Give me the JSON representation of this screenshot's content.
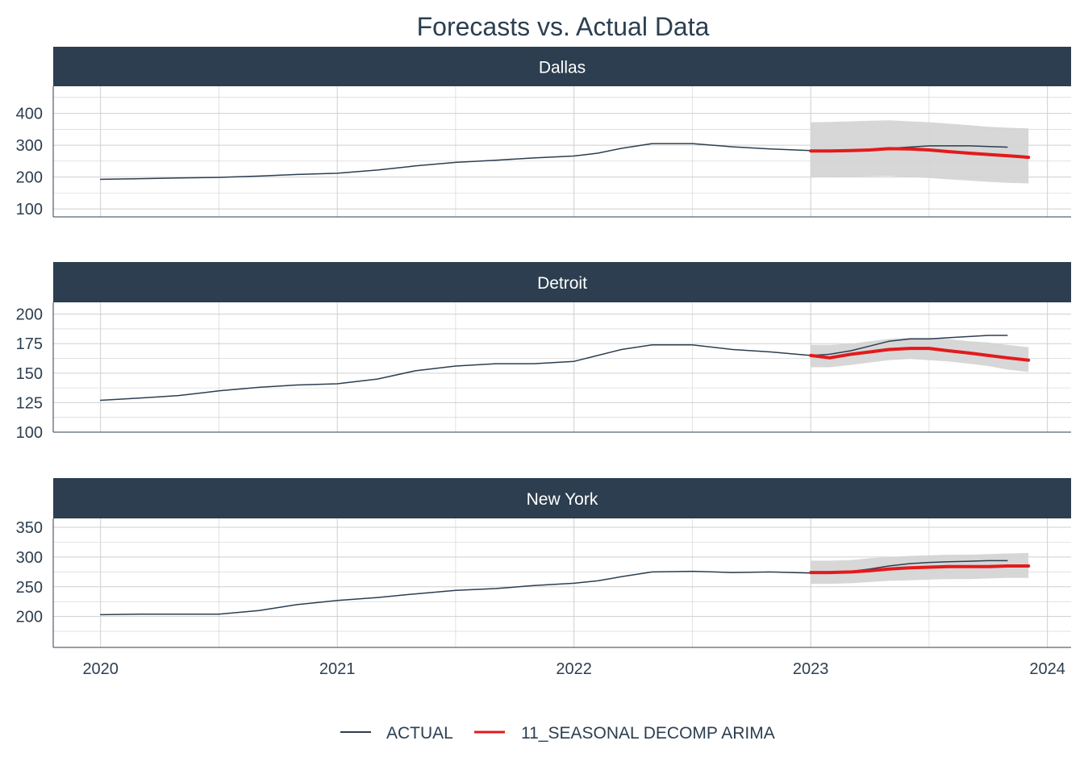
{
  "chart_data": {
    "type": "line",
    "title": "Forecasts vs. Actual Data",
    "colors": {
      "actual": "#2c3e50",
      "forecast": "#e31a1c",
      "interval": "#d3d3d3",
      "strip": "#2c3e50",
      "grid": "#cfcfcf"
    },
    "x_axis": {
      "ticks": [
        2020,
        2021,
        2022,
        2023,
        2024
      ],
      "range": [
        2019.8,
        2024.1
      ]
    },
    "legend": {
      "position": "bottom",
      "entries": [
        {
          "label": "ACTUAL",
          "color": "#2c3e50"
        },
        {
          "label": "11_SEASONAL DECOMP ARIMA",
          "color": "#e31a1c"
        }
      ]
    },
    "panels": [
      {
        "name": "Dallas",
        "ylim": [
          75,
          485
        ],
        "yticks": [
          100,
          200,
          300,
          400
        ],
        "actual": {
          "x": [
            2020.0,
            2020.17,
            2020.33,
            2020.5,
            2020.67,
            2020.83,
            2021.0,
            2021.17,
            2021.33,
            2021.5,
            2021.67,
            2021.83,
            2022.0,
            2022.1,
            2022.2,
            2022.33,
            2022.5,
            2022.67,
            2022.83,
            2023.0
          ],
          "y": [
            193,
            195,
            197,
            199,
            203,
            208,
            212,
            222,
            235,
            246,
            253,
            260,
            266,
            275,
            290,
            305,
            305,
            295,
            288,
            283
          ]
        },
        "actual_test": {
          "x": [
            2023.0,
            2023.17,
            2023.33,
            2023.5,
            2023.67,
            2023.83
          ],
          "y": [
            283,
            285,
            290,
            298,
            298,
            294
          ]
        },
        "forecast": {
          "x": [
            2023.0,
            2023.08,
            2023.17,
            2023.25,
            2023.33,
            2023.42,
            2023.5,
            2023.58,
            2023.67,
            2023.75,
            2023.83,
            2023.92
          ],
          "y": [
            282,
            282,
            283,
            285,
            289,
            288,
            285,
            280,
            275,
            271,
            267,
            262
          ],
          "lower": [
            198,
            200,
            201,
            202,
            203,
            200,
            197,
            193,
            189,
            185,
            182,
            180
          ],
          "upper": [
            372,
            373,
            375,
            377,
            378,
            375,
            372,
            368,
            363,
            358,
            355,
            353
          ]
        }
      },
      {
        "name": "Detroit",
        "ylim": [
          100,
          210
        ],
        "yticks": [
          100,
          125,
          150,
          175,
          200
        ],
        "actual": {
          "x": [
            2020.0,
            2020.17,
            2020.33,
            2020.5,
            2020.67,
            2020.83,
            2021.0,
            2021.17,
            2021.33,
            2021.5,
            2021.67,
            2021.83,
            2022.0,
            2022.1,
            2022.2,
            2022.33,
            2022.5,
            2022.67,
            2022.83,
            2023.0
          ],
          "y": [
            127,
            129,
            131,
            135,
            138,
            140,
            141,
            145,
            152,
            156,
            158,
            158,
            160,
            165,
            170,
            174,
            174,
            170,
            168,
            165
          ]
        },
        "actual_test": {
          "x": [
            2023.0,
            2023.08,
            2023.17,
            2023.25,
            2023.33,
            2023.42,
            2023.5,
            2023.58,
            2023.67,
            2023.75,
            2023.83
          ],
          "y": [
            165,
            166,
            169,
            173,
            177,
            179,
            179,
            180,
            181,
            182,
            182
          ]
        },
        "forecast": {
          "x": [
            2023.0,
            2023.08,
            2023.17,
            2023.25,
            2023.33,
            2023.42,
            2023.5,
            2023.58,
            2023.67,
            2023.75,
            2023.83,
            2023.92
          ],
          "y": [
            165,
            163,
            166,
            168,
            170,
            171,
            171,
            169,
            167,
            165,
            163,
            161
          ],
          "lower": [
            155,
            155,
            157,
            159,
            161,
            162,
            161,
            160,
            158,
            156,
            153,
            151
          ],
          "upper": [
            174,
            174,
            175,
            177,
            179,
            180,
            180,
            179,
            177,
            176,
            174,
            172
          ]
        }
      },
      {
        "name": "New York",
        "ylim": [
          148,
          365
        ],
        "yticks": [
          200,
          250,
          300,
          350
        ],
        "actual": {
          "x": [
            2020.0,
            2020.17,
            2020.33,
            2020.5,
            2020.67,
            2020.83,
            2021.0,
            2021.17,
            2021.33,
            2021.5,
            2021.67,
            2021.83,
            2022.0,
            2022.1,
            2022.2,
            2022.33,
            2022.5,
            2022.67,
            2022.83,
            2023.0
          ],
          "y": [
            203,
            204,
            204,
            204,
            210,
            220,
            227,
            232,
            238,
            244,
            247,
            252,
            256,
            260,
            267,
            275,
            276,
            274,
            275,
            273
          ]
        },
        "actual_test": {
          "x": [
            2023.0,
            2023.08,
            2023.17,
            2023.25,
            2023.33,
            2023.42,
            2023.5,
            2023.58,
            2023.67,
            2023.75,
            2023.83
          ],
          "y": [
            273,
            274,
            276,
            280,
            285,
            289,
            291,
            292,
            293,
            294,
            294
          ]
        },
        "forecast": {
          "x": [
            2023.0,
            2023.08,
            2023.17,
            2023.25,
            2023.33,
            2023.42,
            2023.5,
            2023.58,
            2023.67,
            2023.75,
            2023.83,
            2023.92
          ],
          "y": [
            274,
            274,
            275,
            277,
            280,
            282,
            283,
            284,
            284,
            284,
            285,
            285
          ],
          "lower": [
            255,
            255,
            256,
            258,
            260,
            261,
            262,
            263,
            263,
            264,
            265,
            265
          ],
          "upper": [
            294,
            294,
            295,
            298,
            300,
            302,
            303,
            304,
            304,
            305,
            306,
            307
          ]
        }
      }
    ]
  }
}
